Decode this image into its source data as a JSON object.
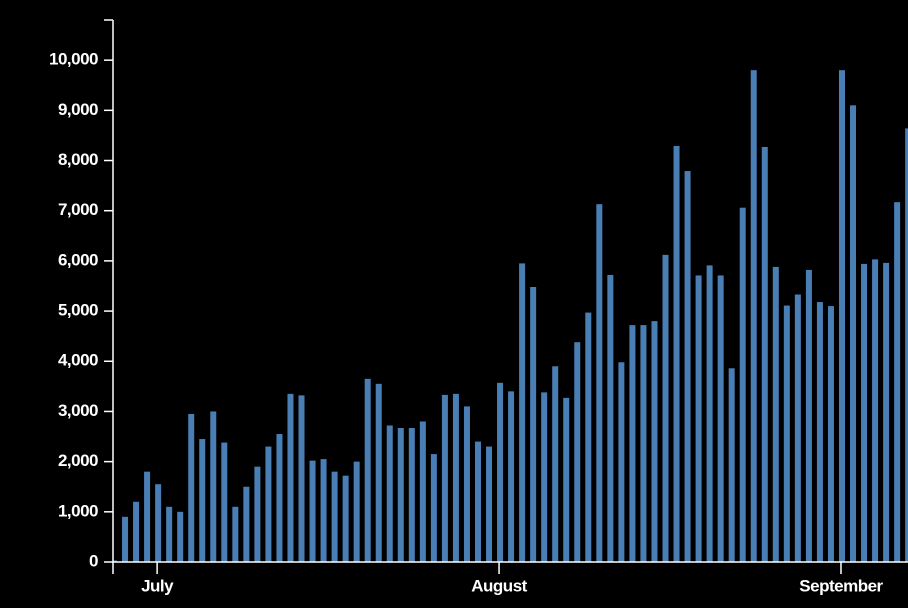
{
  "chart_data": {
    "type": "bar",
    "categories": [
      null,
      null,
      null,
      null,
      "July",
      null,
      null,
      null,
      null,
      null,
      null,
      null,
      null,
      null,
      null,
      null,
      null,
      null,
      null,
      null,
      null,
      null,
      null,
      null,
      null,
      null,
      null,
      null,
      null,
      null,
      null,
      null,
      null,
      null,
      null,
      "August",
      null,
      null,
      null,
      null,
      null,
      null,
      null,
      null,
      null,
      null,
      null,
      null,
      null,
      null,
      null,
      null,
      null,
      null,
      null,
      null,
      null,
      null,
      null,
      null,
      null,
      null,
      null,
      null,
      null,
      null,
      "September",
      null,
      null,
      null,
      null,
      null,
      null
    ],
    "values": [
      30,
      900,
      1200,
      1800,
      1550,
      1100,
      1000,
      2950,
      2450,
      3000,
      2380,
      1100,
      1500,
      1900,
      2300,
      2550,
      3350,
      3320,
      2020,
      2050,
      1800,
      1720,
      2000,
      3650,
      3550,
      2720,
      2670,
      2670,
      2800,
      2150,
      3330,
      3350,
      3100,
      2400,
      2300,
      3570,
      3400,
      5950,
      5480,
      3380,
      3900,
      3270,
      4380,
      4970,
      7130,
      5720,
      3980,
      4720,
      4720,
      4800,
      6120,
      8290,
      7790,
      5710,
      5910,
      5710,
      3860,
      7060,
      9800,
      8270,
      5880,
      5110,
      5330,
      5820,
      5180,
      5100,
      9800,
      9100,
      5940,
      6030,
      5960,
      7170,
      8640
    ],
    "color": "#4a7fb5",
    "ylim": [
      0,
      10800
    ],
    "yticks": [
      0,
      {
        "value": 1000,
        "label": "1,000"
      },
      {
        "value": 2000,
        "label": "2,000"
      },
      {
        "value": 3000,
        "label": "3,000"
      },
      {
        "value": 4000,
        "label": "4,000"
      },
      {
        "value": 5000,
        "label": "5,000"
      },
      {
        "value": 6000,
        "label": "6,000"
      },
      {
        "value": 7000,
        "label": "7,000"
      },
      {
        "value": 8000,
        "label": "8,000"
      },
      {
        "value": 9000,
        "label": "9,000"
      },
      {
        "value": 10000,
        "label": "10,000"
      }
    ]
  }
}
